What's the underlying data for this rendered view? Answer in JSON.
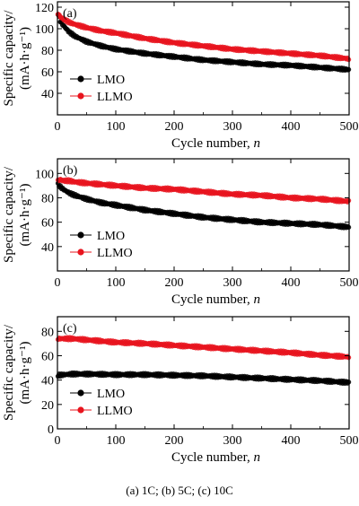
{
  "caption": "(a) 1C; (b) 5C; (c) 10C",
  "colors": {
    "LMO": "#000000",
    "LLMO": "#e8141e"
  },
  "chart_data": [
    {
      "type": "scatter",
      "panel_label": "(a)",
      "xlabel": "Cycle number, n",
      "ylabel": [
        "Specific capacity/",
        "(mA·h·g⁻¹)"
      ],
      "xlim": [
        0,
        500
      ],
      "ylim": [
        20,
        125
      ],
      "xticks": [
        0,
        100,
        200,
        300,
        400,
        500
      ],
      "yticks": [
        40,
        60,
        80,
        100,
        120
      ],
      "grid": false,
      "legend_position": "bottom-left",
      "series": [
        {
          "name": "LMO",
          "x": [
            1,
            5,
            10,
            20,
            30,
            50,
            75,
            100,
            150,
            200,
            250,
            300,
            350,
            400,
            450,
            500
          ],
          "y": [
            114,
            107,
            103,
            97,
            93,
            88,
            84,
            81,
            77,
            74,
            71,
            69,
            67,
            66,
            64,
            62
          ]
        },
        {
          "name": "LLMO",
          "x": [
            1,
            5,
            10,
            20,
            30,
            50,
            75,
            100,
            150,
            200,
            250,
            300,
            350,
            400,
            450,
            500
          ],
          "y": [
            114,
            111,
            109,
            106,
            104,
            101,
            98,
            96,
            91,
            87,
            84,
            81,
            79,
            77,
            75,
            72
          ]
        }
      ]
    },
    {
      "type": "scatter",
      "panel_label": "(b)",
      "xlabel": "Cycle number, n",
      "ylabel": [
        "Specific capacity/",
        "(mA·h·g⁻¹)"
      ],
      "xlim": [
        0,
        500
      ],
      "ylim": [
        20,
        112
      ],
      "xticks": [
        0,
        100,
        200,
        300,
        400,
        500
      ],
      "yticks": [
        40,
        60,
        80,
        100
      ],
      "grid": false,
      "legend_position": "bottom-left",
      "series": [
        {
          "name": "LMO",
          "x": [
            1,
            5,
            10,
            20,
            30,
            50,
            75,
            100,
            150,
            200,
            250,
            300,
            350,
            400,
            450,
            500
          ],
          "y": [
            91,
            89,
            87,
            84,
            82,
            79,
            76,
            74,
            70,
            67,
            64,
            62,
            60,
            59,
            58,
            56
          ]
        },
        {
          "name": "LLMO",
          "x": [
            1,
            5,
            10,
            20,
            30,
            50,
            75,
            100,
            150,
            200,
            250,
            300,
            350,
            400,
            450,
            500
          ],
          "y": [
            94,
            95,
            94,
            94,
            93,
            92,
            91,
            90,
            88,
            87,
            85,
            83,
            82,
            80,
            79,
            77
          ]
        }
      ]
    },
    {
      "type": "scatter",
      "panel_label": "(c)",
      "xlabel": "Cycle number, n",
      "ylabel": [
        "Specific capacity/",
        "(mA·h·g⁻¹)"
      ],
      "xlim": [
        0,
        500
      ],
      "ylim": [
        0,
        92
      ],
      "xticks": [
        0,
        100,
        200,
        300,
        400,
        500
      ],
      "yticks": [
        0,
        20,
        40,
        60,
        80
      ],
      "grid": false,
      "legend_position": "bottom-left",
      "series": [
        {
          "name": "LMO",
          "x": [
            1,
            25,
            50,
            100,
            150,
            200,
            250,
            300,
            350,
            400,
            450,
            500
          ],
          "y": [
            44,
            45,
            45,
            44.5,
            44.5,
            44,
            43.5,
            42.5,
            41.5,
            40.5,
            39.5,
            38
          ]
        },
        {
          "name": "LLMO",
          "x": [
            1,
            25,
            50,
            100,
            150,
            200,
            250,
            300,
            350,
            400,
            450,
            500
          ],
          "y": [
            74,
            74,
            73,
            71,
            70,
            68.5,
            67,
            65.5,
            64,
            62.5,
            60.5,
            59
          ]
        }
      ]
    }
  ]
}
